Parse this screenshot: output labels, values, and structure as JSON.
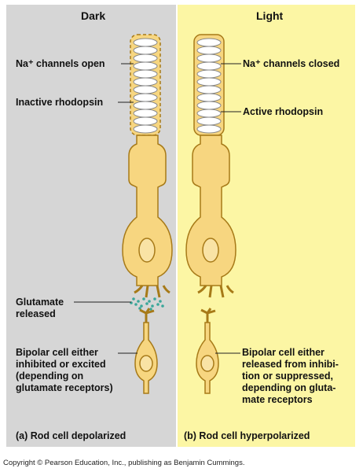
{
  "dark_panel": {
    "title": "Dark",
    "background": "#d6d6d6",
    "labels": {
      "na_channels": "Na⁺ channels open",
      "rhodopsin": "Inactive rhodopsin",
      "glutamate": "Glutamate\nreleased",
      "bipolar": "Bipolar cell either\ninhibited or excited\n(depending on\nglutamate receptors)"
    },
    "caption": "(a) Rod cell depolarized"
  },
  "light_panel": {
    "title": "Light",
    "background": "#fcf6a4",
    "labels": {
      "na_channels": "Na⁺ channels closed",
      "rhodopsin": "Active rhodopsin",
      "bipolar": "Bipolar cell either\nreleased from inhibi-\ntion or suppressed,\ndepending on gluta-\nmate receptors"
    },
    "caption": "(b) Rod cell hyperpolarized"
  },
  "colors": {
    "cell_fill": "#f7d680",
    "cell_stroke": "#a77a18",
    "nucleus_fill": "#f9e3a5",
    "disc_fill": "#ffffff",
    "glutamate_dot": "#3aa79a"
  },
  "copyright": "Copyright © Pearson Education, Inc., publishing as Benjamin Cummings."
}
